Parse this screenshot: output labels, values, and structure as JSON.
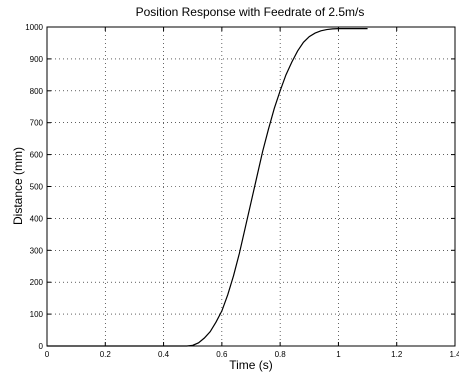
{
  "chart_data": {
    "type": "line",
    "title": "Position Response with Feedrate of 2.5m/s",
    "xlabel": "Time (s)",
    "ylabel": "Distance (mm)",
    "xlim": [
      0,
      1.4
    ],
    "ylim": [
      0,
      1000
    ],
    "xticks": [
      "0",
      "0.2",
      "0.4",
      "0.6",
      "0.8",
      "1",
      "1.2",
      "1.4"
    ],
    "xtick_values": [
      0,
      0.2,
      0.4,
      0.6,
      0.8,
      1.0,
      1.2,
      1.4
    ],
    "yticks": [
      "0",
      "100",
      "200",
      "300",
      "400",
      "500",
      "600",
      "700",
      "800",
      "900",
      "1000"
    ],
    "ytick_values": [
      0,
      100,
      200,
      300,
      400,
      500,
      600,
      700,
      800,
      900,
      1000
    ],
    "grid": true,
    "series": [
      {
        "x": [
          0.0,
          0.48,
          0.5,
          0.52,
          0.54,
          0.56,
          0.58,
          0.6,
          0.62,
          0.64,
          0.66,
          0.68,
          0.7,
          0.72,
          0.74,
          0.76,
          0.78,
          0.8,
          0.82,
          0.84,
          0.86,
          0.88,
          0.9,
          0.92,
          0.94,
          0.96,
          0.98,
          1.0,
          1.02,
          1.05,
          1.1
        ],
        "y": [
          0,
          0,
          2,
          10,
          25,
          45,
          75,
          110,
          160,
          220,
          290,
          370,
          450,
          530,
          610,
          680,
          745,
          800,
          850,
          890,
          925,
          952,
          970,
          981,
          988,
          992,
          994,
          995,
          995,
          995,
          995
        ]
      }
    ]
  }
}
